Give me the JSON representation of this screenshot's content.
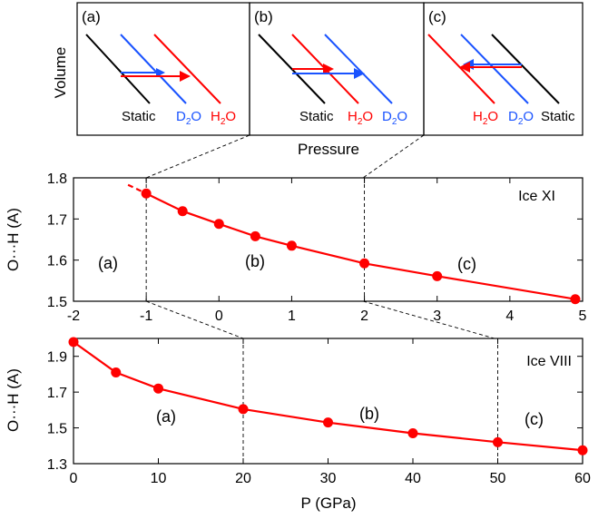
{
  "top_panels": {
    "ylabel": "Volume",
    "xlabel": "Pressure",
    "panels": [
      {
        "letter": "(a)",
        "order": [
          "Static",
          "D2O",
          "H2O"
        ]
      },
      {
        "letter": "(b)",
        "order": [
          "Static",
          "H2O",
          "D2O"
        ]
      },
      {
        "letter": "(c)",
        "order": [
          "H2O",
          "D2O",
          "Static"
        ]
      }
    ],
    "labels": {
      "static": "Static",
      "h2o": "H",
      "d2o": "D",
      "o": "O",
      "sub2": "2"
    },
    "colors": {
      "static": "#000000",
      "h2o": "#ff0000",
      "d2o": "#1a53ff"
    }
  },
  "chart_data": [
    {
      "type": "line",
      "title": "Ice XI",
      "xlabel": "",
      "ylabel": "O···H (A)",
      "xlim": [
        -2,
        5
      ],
      "ylim": [
        1.5,
        1.8
      ],
      "xticks": [
        "-2",
        "-1",
        "0",
        "1",
        "2",
        "3",
        "4",
        "5"
      ],
      "yticks": [
        "1.5",
        "1.6",
        "1.7",
        "1.8"
      ],
      "x": [
        -1.0,
        -0.5,
        0.0,
        0.5,
        1.0,
        2.0,
        3.0,
        4.9
      ],
      "y": [
        1.762,
        1.719,
        1.688,
        1.658,
        1.635,
        1.592,
        1.561,
        1.505
      ],
      "dashed_extension": {
        "x": [
          -1.25,
          -1.0
        ],
        "y": [
          1.783,
          1.762
        ]
      },
      "regions": [
        "(a)",
        "(b)",
        "(c)"
      ],
      "boundaries": [
        -1,
        2
      ],
      "color": "#ff0000",
      "grid": false
    },
    {
      "type": "line",
      "title": "Ice VIII",
      "xlabel": "P (GPa)",
      "ylabel": "O···H (A)",
      "xlim": [
        0,
        60
      ],
      "ylim": [
        1.3,
        2.0
      ],
      "xticks": [
        "0",
        "10",
        "20",
        "30",
        "40",
        "50",
        "60"
      ],
      "yticks": [
        "1.3",
        "1.5",
        "1.7",
        "1.9"
      ],
      "x": [
        0,
        5,
        10,
        20,
        30,
        40,
        50,
        60
      ],
      "y": [
        1.98,
        1.81,
        1.72,
        1.605,
        1.53,
        1.47,
        1.42,
        1.375
      ],
      "regions": [
        "(a)",
        "(b)",
        "(c)"
      ],
      "boundaries": [
        20,
        50
      ],
      "color": "#ff0000",
      "grid": false
    }
  ]
}
